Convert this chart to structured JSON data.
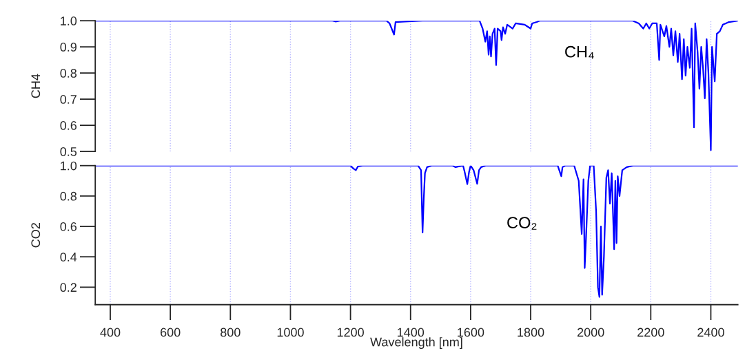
{
  "chart_data": [
    {
      "type": "line",
      "ylabel": "CH4",
      "ylim": [
        0.5,
        1.0
      ],
      "xticks": [
        400,
        600,
        800,
        1000,
        1200,
        1400,
        1600,
        1800,
        2000,
        2200,
        2400
      ],
      "yticks": [
        {
          "value": 0.5,
          "label": "0.5"
        },
        {
          "value": 0.6,
          "label": "0.6"
        },
        {
          "value": 0.7,
          "label": "0.7"
        },
        {
          "value": 0.8,
          "label": "0.8"
        },
        {
          "value": 0.9,
          "label": "0.9"
        },
        {
          "value": 1.0,
          "label": "1.0"
        }
      ],
      "tick_labels": "y",
      "grid": "x",
      "marker": "none",
      "line_style": "solid",
      "series": [
        {
          "name": "CH₄",
          "color": "#0000ff",
          "x": [
            350,
            1140,
            1150,
            1165,
            1320,
            1330,
            1345,
            1350,
            1380,
            1440,
            1630,
            1640,
            1649,
            1655,
            1660,
            1664,
            1668,
            1673,
            1680,
            1685,
            1690,
            1700,
            1703,
            1708,
            1715,
            1722,
            1740,
            1750,
            1780,
            1800,
            1805,
            1820,
            1830,
            2140,
            2160,
            2175,
            2185,
            2195,
            2205,
            2220,
            2228,
            2232,
            2245,
            2252,
            2262,
            2268,
            2275,
            2282,
            2290,
            2296,
            2304,
            2310,
            2316,
            2322,
            2330,
            2336,
            2344,
            2348,
            2356,
            2362,
            2368,
            2374,
            2380,
            2386,
            2392,
            2400,
            2404,
            2413,
            2420,
            2430,
            2440,
            2450,
            2460,
            2490
          ],
          "values": [
            1.0,
            1.0,
            0.997,
            1.0,
            1.0,
            0.99,
            0.947,
            0.995,
            0.997,
            1.0,
            1.0,
            0.97,
            0.92,
            0.96,
            0.87,
            0.94,
            0.863,
            0.95,
            0.97,
            0.83,
            0.97,
            0.96,
            0.926,
            0.975,
            0.95,
            0.985,
            0.97,
            0.99,
            0.985,
            0.97,
            0.99,
            0.995,
            1.0,
            1.0,
            0.99,
            0.97,
            0.99,
            0.97,
            0.99,
            0.99,
            0.85,
            0.985,
            0.94,
            0.98,
            0.9,
            0.97,
            0.868,
            0.96,
            0.842,
            0.95,
            0.776,
            0.93,
            0.79,
            0.9,
            0.82,
            0.97,
            0.592,
            0.99,
            0.88,
            0.74,
            0.9,
            0.82,
            0.703,
            0.93,
            0.8,
            0.505,
            0.9,
            0.768,
            0.95,
            0.96,
            0.985,
            0.99,
            0.995,
            1.0
          ]
        }
      ]
    },
    {
      "type": "line",
      "ylabel": "CO2",
      "xlabel": "Wavelength [nm]",
      "xlim": [
        350,
        2490
      ],
      "ylim": [
        0.085,
        1.0
      ],
      "xticks": [
        400,
        600,
        800,
        1000,
        1200,
        1400,
        1600,
        1800,
        2000,
        2200,
        2400
      ],
      "yticks": [
        0.2,
        0.4,
        0.6,
        0.8,
        {
          "value": 1.0,
          "label": "1.0"
        }
      ],
      "grid": "x",
      "marker": "none",
      "line_style": "solid",
      "series": [
        {
          "name": "CO₂",
          "color": "#0000ff",
          "x": [
            350,
            1200,
            1210,
            1218,
            1225,
            1240,
            1425,
            1435,
            1440,
            1444,
            1448,
            1455,
            1470,
            1540,
            1550,
            1560,
            1575,
            1580,
            1589,
            1595,
            1600,
            1610,
            1622,
            1628,
            1635,
            1650,
            1890,
            1902,
            1906,
            1915,
            1945,
            1960,
            1970,
            1976,
            1980,
            1986,
            1992,
            1998,
            2010,
            2018,
            2024,
            2029,
            2034,
            2038,
            2044,
            2052,
            2058,
            2064,
            2070,
            2078,
            2082,
            2086,
            2090,
            2096,
            2105,
            2120,
            2141,
            2490
          ],
          "values": [
            1.0,
            1.0,
            0.98,
            0.97,
            0.995,
            1.0,
            1.0,
            0.97,
            0.56,
            0.78,
            0.95,
            0.99,
            1.0,
            1.0,
            0.99,
            0.995,
            1.0,
            0.96,
            0.878,
            0.96,
            1.0,
            0.97,
            0.88,
            0.97,
            0.99,
            1.0,
            1.0,
            0.93,
            0.99,
            1.0,
            1.0,
            0.9,
            0.55,
            0.91,
            0.326,
            0.6,
            0.9,
            1.0,
            1.0,
            0.7,
            0.2,
            0.136,
            0.6,
            0.15,
            0.4,
            0.92,
            0.97,
            0.75,
            0.95,
            0.45,
            0.9,
            0.49,
            0.93,
            0.8,
            0.97,
            0.99,
            1.0,
            1.0
          ]
        }
      ]
    }
  ]
}
